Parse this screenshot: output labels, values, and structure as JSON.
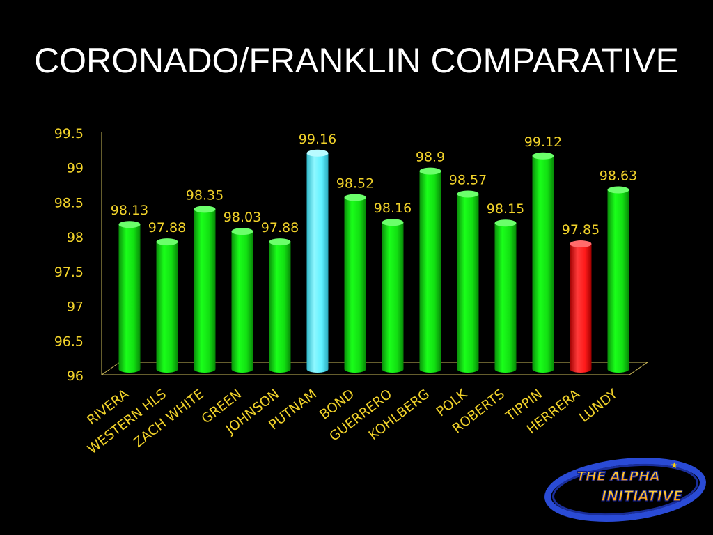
{
  "slide": {
    "title": "CORONADO/FRANKLIN COMPARATIVE",
    "logo": {
      "top_text": "THE ALPHA",
      "bottom_text": "INITIATIVE"
    }
  },
  "colors": {
    "background": "#000000",
    "label_text": "#f2d32a",
    "bar_default": "#12e012",
    "bar_highlight_blue": "#5df0ff",
    "bar_highlight_red": "#ff1a1a",
    "axis_line": "#cdbb5a"
  },
  "chart_data": {
    "type": "bar",
    "title": "CORONADO/FRANKLIN COMPARATIVE",
    "xlabel": "",
    "ylabel": "",
    "ylim": [
      96,
      99.5
    ],
    "yticks": [
      96,
      96.5,
      97,
      97.5,
      98,
      98.5,
      99,
      99.5
    ],
    "ytick_labels": [
      "96",
      "96.5",
      "97",
      "97.5",
      "98",
      "98.5",
      "99",
      "99.5"
    ],
    "categories": [
      "RIVERA",
      "WESTERN HLS",
      "ZACH WHITE",
      "GREEN",
      "JOHNSON",
      "PUTNAM",
      "BOND",
      "GUERRERO",
      "KOHLBERG",
      "POLK",
      "ROBERTS",
      "TIPPIN",
      "HERRERA",
      "LUNDY"
    ],
    "values": [
      98.13,
      97.88,
      98.35,
      98.03,
      97.88,
      99.16,
      98.52,
      98.16,
      98.9,
      98.57,
      98.15,
      99.12,
      97.85,
      98.63
    ],
    "data_labels": [
      "98.13",
      "97.88",
      "98.35",
      "98.03",
      "97.88",
      "99.16",
      "98.52",
      "98.16",
      "98.9",
      "98.57",
      "98.15",
      "99.12",
      "97.85",
      "98.63"
    ],
    "bar_colors": [
      "green",
      "green",
      "green",
      "green",
      "green",
      "blue",
      "green",
      "green",
      "green",
      "green",
      "green",
      "green",
      "red",
      "green"
    ],
    "grid": false,
    "legend": "none",
    "style": "3d-cylinder"
  }
}
